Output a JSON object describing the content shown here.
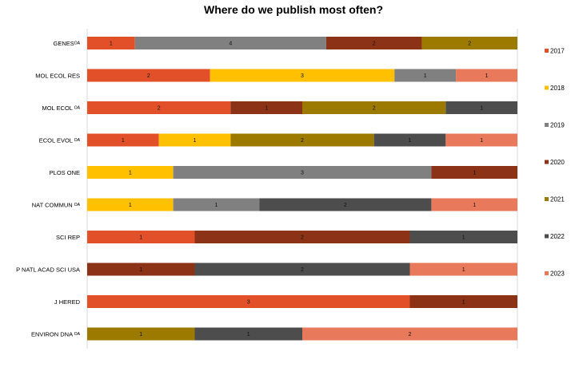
{
  "chart_data": {
    "type": "bar",
    "orientation": "horizontal",
    "stacked": "percent",
    "title": "Where do we publish most often?",
    "xlabel": "",
    "ylabel": "",
    "grid": false,
    "legend_position": "right",
    "categories": [
      "GENESᴼᴬ",
      "MOL ECOL RES",
      "MOL ECOL ᴼᴬ",
      "ECOL EVOL ᴼᴬ",
      "PLOS ONE",
      "NAT COMMUN ᴼᴬ",
      "SCI REP",
      "P NATL ACAD SCI USA",
      "J HERED",
      "ENVIRON DNA ᴼᴬ"
    ],
    "series": [
      {
        "name": "2017",
        "color": "#E2502A",
        "values": [
          1,
          2,
          2,
          1,
          0,
          0,
          1,
          0,
          3,
          0
        ]
      },
      {
        "name": "2018",
        "color": "#FFC000",
        "values": [
          0,
          3,
          0,
          1,
          1,
          1,
          0,
          0,
          0,
          0
        ]
      },
      {
        "name": "2019",
        "color": "#808080",
        "values": [
          4,
          1,
          0,
          0,
          3,
          1,
          0,
          0,
          0,
          0
        ]
      },
      {
        "name": "2020",
        "color": "#8B3217",
        "values": [
          2,
          0,
          1,
          0,
          1,
          0,
          2,
          1,
          1,
          0
        ]
      },
      {
        "name": "2021",
        "color": "#9C7A00",
        "values": [
          2,
          0,
          2,
          2,
          0,
          0,
          0,
          0,
          0,
          1
        ]
      },
      {
        "name": "2022",
        "color": "#4D4D4D",
        "values": [
          0,
          0,
          1,
          1,
          0,
          2,
          1,
          2,
          0,
          1
        ]
      },
      {
        "name": "2023",
        "color": "#E8795A",
        "values": [
          0,
          1,
          0,
          1,
          0,
          1,
          0,
          1,
          0,
          2
        ]
      }
    ]
  }
}
